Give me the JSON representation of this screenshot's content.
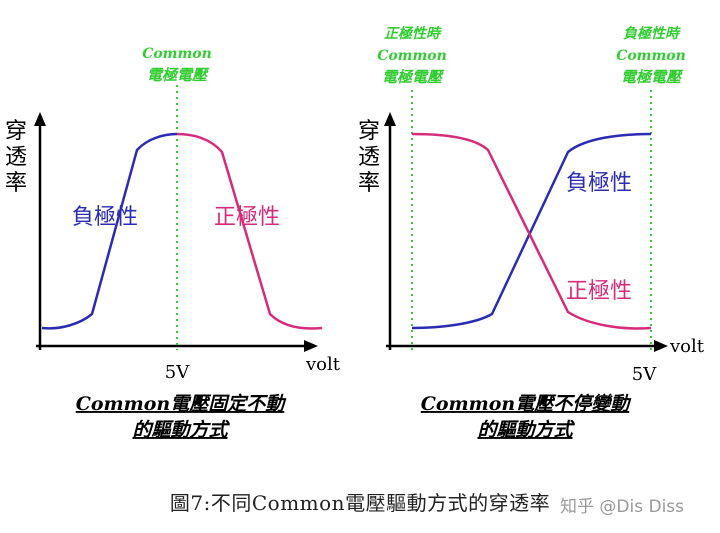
{
  "left_panel": {
    "common_label_line1": "Common",
    "common_label_line2": "電極電壓",
    "ylabel": [
      "穿",
      "透",
      "率"
    ],
    "negative_label": "負極性",
    "positive_label": "正極性",
    "x_tick": "5V",
    "x_label": "volt",
    "subtitle_line1": "Common電壓固定不動",
    "subtitle_line2": "的驅動方式"
  },
  "right_panel": {
    "left_label": [
      "正極性時",
      "Common",
      "電極電壓"
    ],
    "right_label": [
      "負極性時",
      "Common",
      "電極電壓"
    ],
    "ylabel": [
      "穿",
      "透",
      "率"
    ],
    "negative_label": "負極性",
    "positive_label": "正極性",
    "x_tick": "5V",
    "x_label": "volt",
    "subtitle_line1": "Common電壓不停變動",
    "subtitle_line2": "的驅動方式"
  },
  "caption": "圖7:不同Common電壓驅動方式的穿透率",
  "watermark": "知乎 @Dis Diss",
  "colors": {
    "negative": "#2b2bb3",
    "positive": "#d62a7a",
    "common": "#33cc33",
    "axis": "#000000"
  }
}
